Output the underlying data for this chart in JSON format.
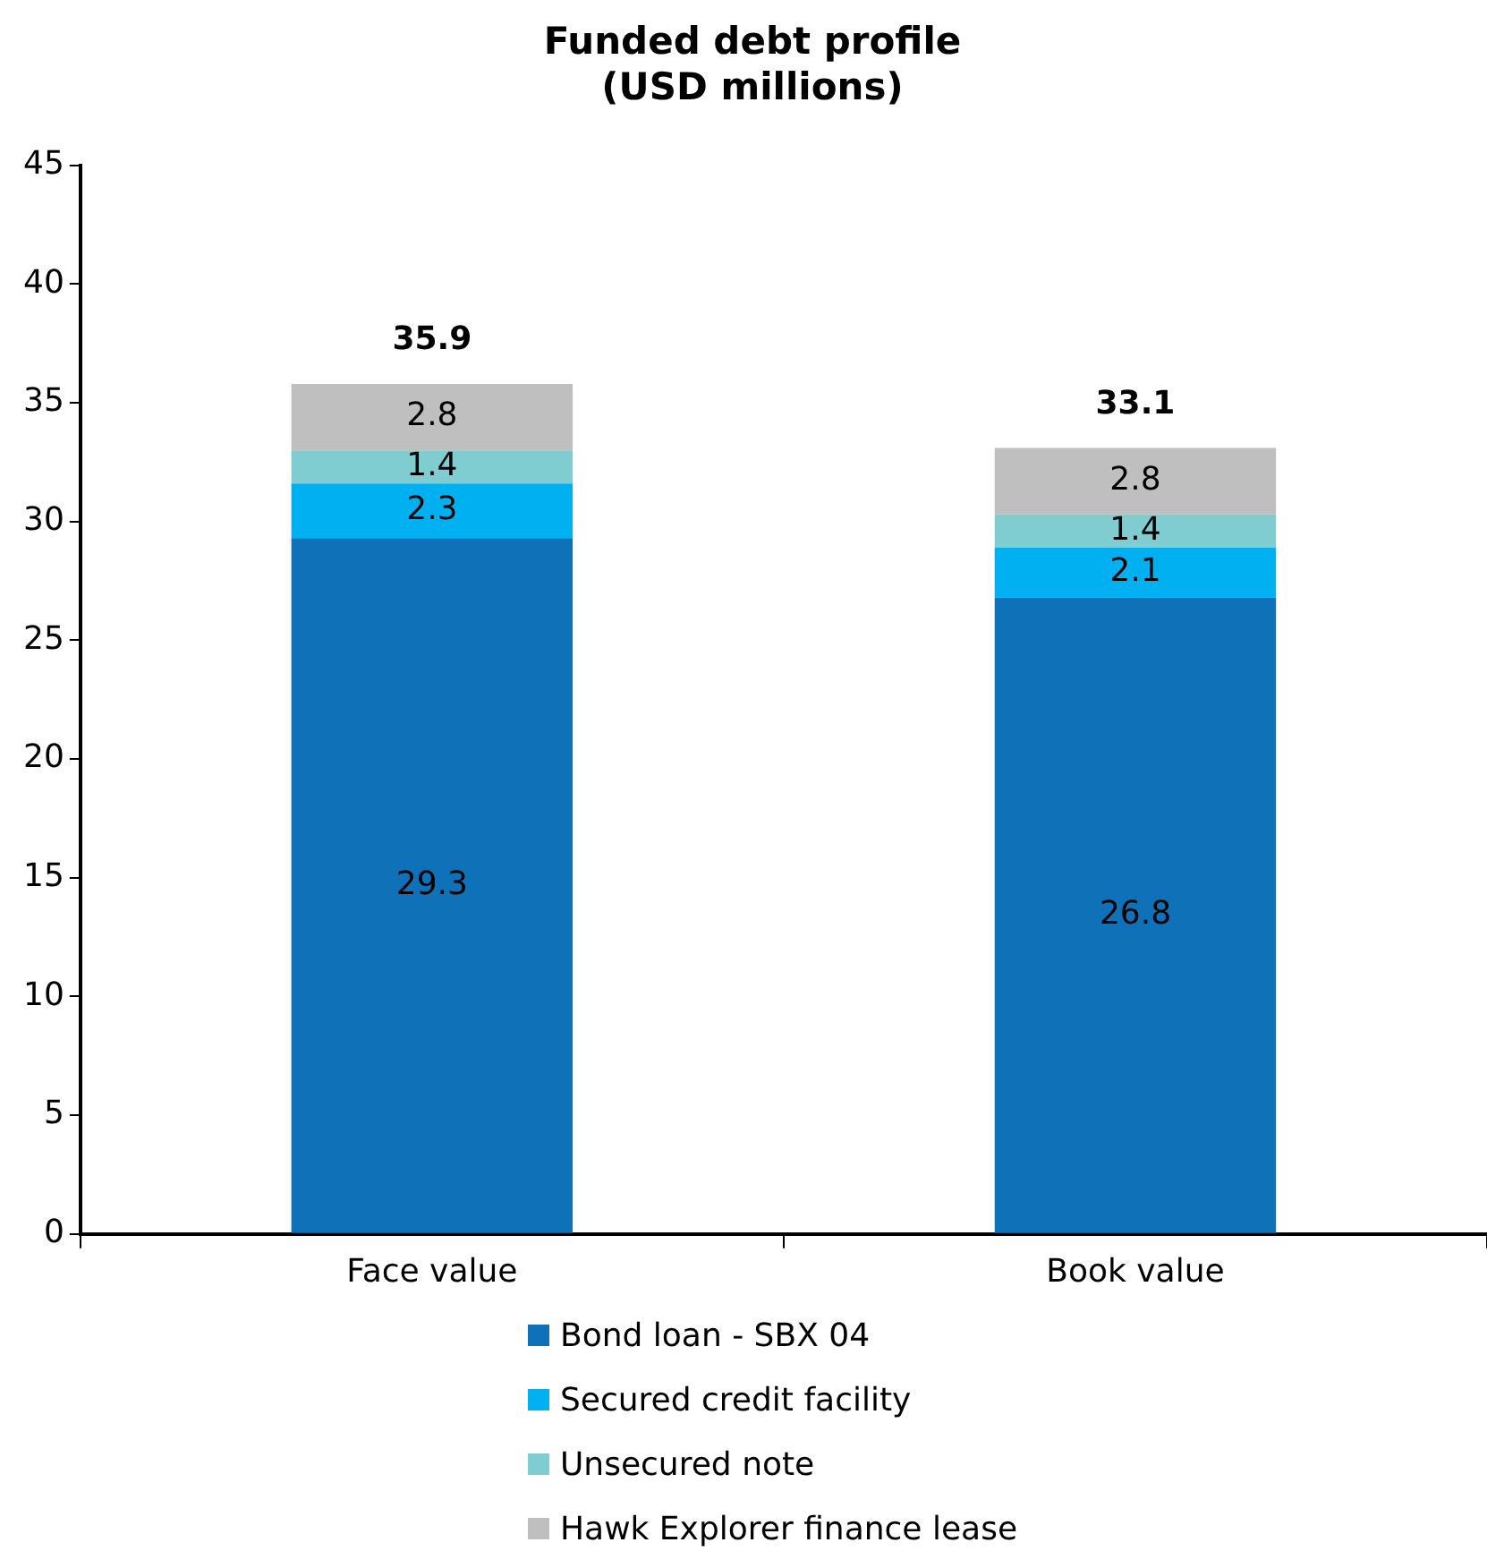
{
  "chart_data": {
    "type": "bar",
    "title": "Funded debt profile\n(USD millions)",
    "categories": [
      "Face value",
      "Book value"
    ],
    "stacked": true,
    "series": [
      {
        "name": "Bond loan - SBX 04",
        "color": "#0f72b9",
        "values": [
          29.3,
          26.8
        ]
      },
      {
        "name": "Secured credit facility",
        "color": "#00b0f0",
        "values": [
          2.3,
          2.1
        ]
      },
      {
        "name": "Unsecured note",
        "color": "#7fcdd1",
        "values": [
          1.4,
          1.4
        ]
      },
      {
        "name": "Hawk Explorer finance lease",
        "color": "#bfbfbf",
        "values": [
          2.8,
          2.8
        ]
      }
    ],
    "totals": [
      "35.9",
      "33.1"
    ],
    "data_labels": true,
    "ylim": [
      0,
      45
    ],
    "yticks": [
      0,
      5,
      10,
      15,
      20,
      25,
      30,
      35,
      40,
      45
    ],
    "grid": false,
    "legend": "bottom"
  }
}
